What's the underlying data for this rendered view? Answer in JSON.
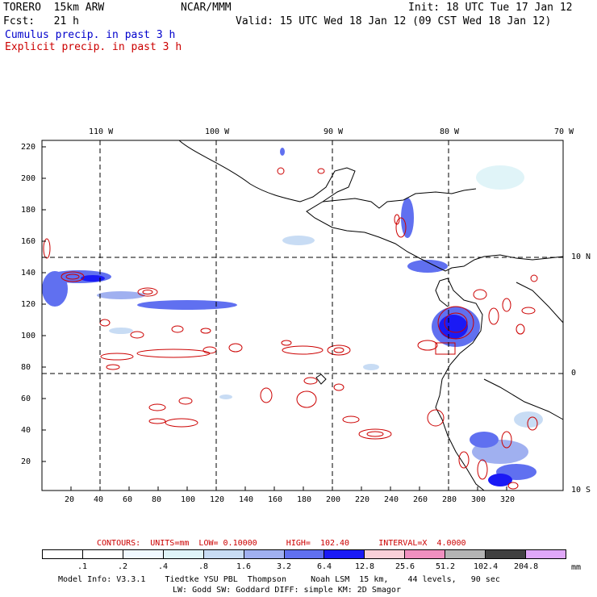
{
  "header": {
    "model": "TORERO  15km ARW",
    "org": "NCAR/MMM",
    "init": "Init: 18 UTC Tue 17 Jan 12",
    "fcst": "Fcst:   21 h",
    "valid": "Valid: 15 UTC Wed 18 Jan 12 (09 CST Wed 18 Jan 12)",
    "legend_cumulus": "Cumulus precip. in past 3 h",
    "legend_explicit": "Explicit precip. in past 3 h"
  },
  "map": {
    "lon_labels": [
      "110 W",
      "100 W",
      "90 W",
      "80 W",
      "70 W"
    ],
    "lat_labels": [
      "10 N",
      "0",
      "10 S"
    ],
    "x_ticks": [
      "20",
      "40",
      "60",
      "80",
      "100",
      "120",
      "140",
      "160",
      "180",
      "200",
      "220",
      "240",
      "260",
      "280",
      "300",
      "320"
    ],
    "y_ticks": [
      "220",
      "200",
      "180",
      "160",
      "140",
      "120",
      "100",
      "80",
      "60",
      "40",
      "20"
    ]
  },
  "contours": {
    "label": "CONTOURS:  UNITS=mm  LOW= 0.10000      HIGH=  102.40      INTERVAL=X  4.0000"
  },
  "colorbar": {
    "labels": [
      ".1",
      ".2",
      ".4",
      ".8",
      "1.6",
      "3.2",
      "6.4",
      "12.8",
      "25.6",
      "51.2",
      "102.4",
      "204.8"
    ],
    "units": "mm",
    "colors": [
      "#ffffff",
      "#ffffff",
      "#f0f8ff",
      "#e0f4f8",
      "#c8dcf4",
      "#a0b0f0",
      "#6070f0",
      "#1a1af5",
      "#f8d0d8",
      "#f090c0",
      "#b4b4b4",
      "#404040",
      "#e0a8f8"
    ]
  },
  "footer": {
    "line1": "Model Info: V3.3.1    Tiedtke YSU PBL  Thompson     Noah LSM  15 km,    44 levels,   90 sec",
    "line2": "LW: Godd SW: Goddard DIFF: simple KM: 2D Smagor"
  }
}
